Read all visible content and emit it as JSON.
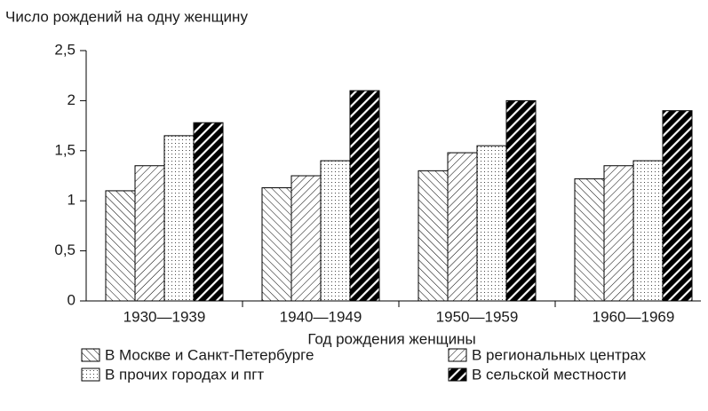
{
  "chart_data": {
    "type": "bar",
    "title": "Число рождений на одну женщину",
    "x_label": "Год рождения женщины",
    "categories": [
      "1930—1939",
      "1940—1949",
      "1950—1959",
      "1960—1969"
    ],
    "series": [
      {
        "name": "В Москве и Санкт-Петербурге",
        "color": "#000000",
        "pattern": "back-hatch",
        "values": [
          1.1,
          1.13,
          1.3,
          1.22
        ]
      },
      {
        "name": "В региональных центрах",
        "color": "#000000",
        "pattern": "forward-hatch",
        "values": [
          1.35,
          1.25,
          1.48,
          1.35
        ]
      },
      {
        "name": "В прочих городах и пгт",
        "color": "#000000",
        "pattern": "dots",
        "values": [
          1.65,
          1.4,
          1.55,
          1.4
        ]
      },
      {
        "name": "В сельской местности",
        "color": "#000000",
        "pattern": "bold-hatch",
        "values": [
          1.78,
          2.1,
          2.0,
          1.9
        ]
      }
    ],
    "ylim": [
      0,
      2.5
    ],
    "yticks": [
      0,
      {
        "value": 0.5,
        "label": "0,5"
      },
      1,
      {
        "value": 1.5,
        "label": "1,5"
      },
      2,
      {
        "value": 2.5,
        "label": "2,5"
      }
    ],
    "grid": false
  }
}
